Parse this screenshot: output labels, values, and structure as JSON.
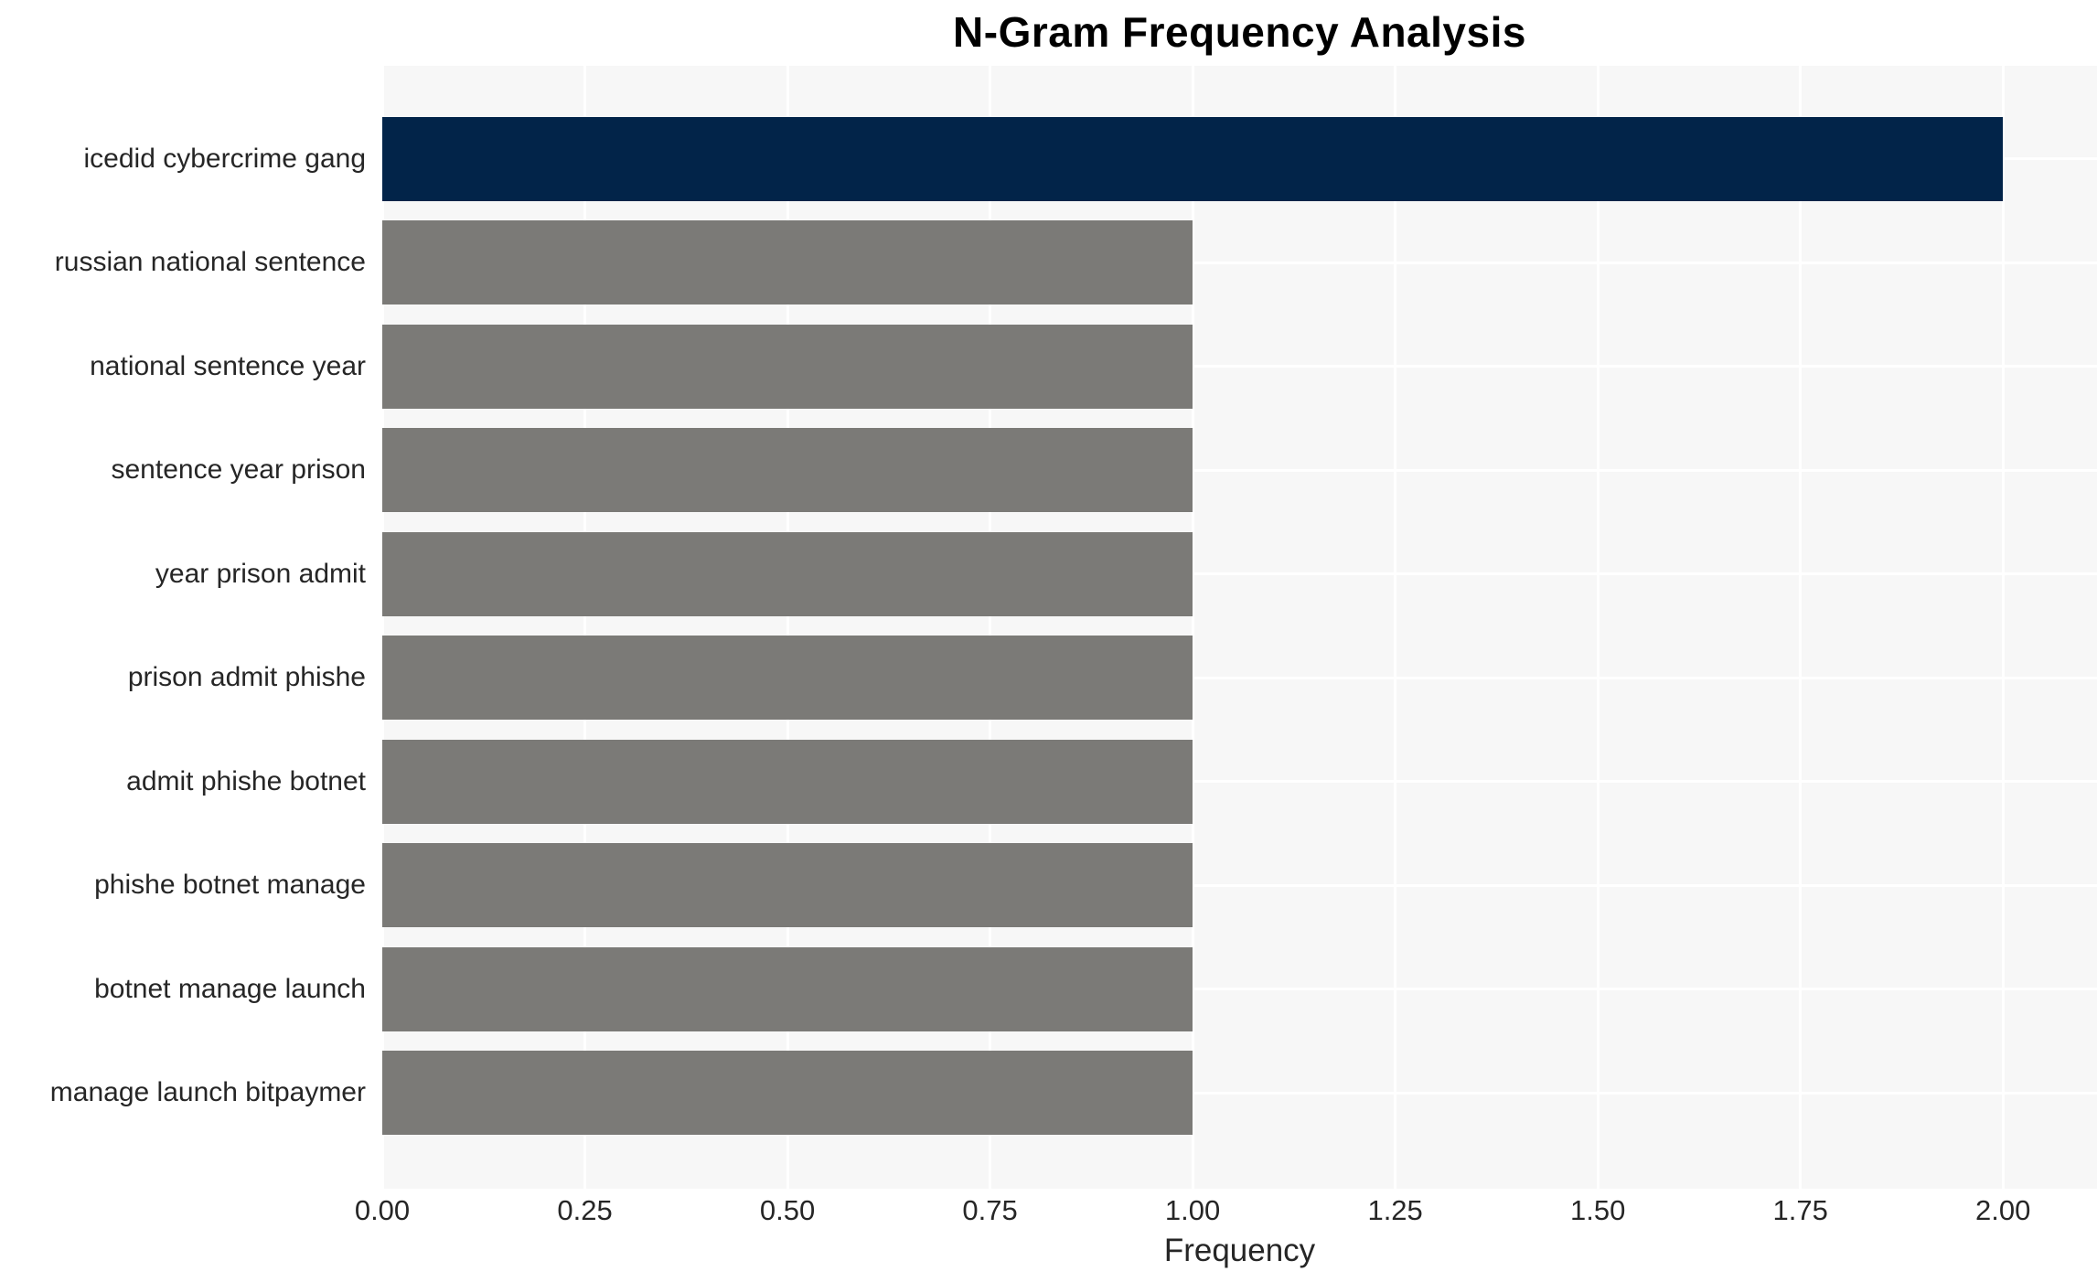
{
  "colors": {
    "title_text": "#000000",
    "tick_text": "#262626",
    "plot_bg": "#f7f7f7",
    "grid": "#ffffff",
    "highlight_bar": "#022449",
    "default_bar": "#7b7a77"
  },
  "chart_data": {
    "type": "bar",
    "orientation": "horizontal",
    "title": "N-Gram Frequency Analysis",
    "xlabel": "Frequency",
    "ylabel": "",
    "categories": [
      "icedid cybercrime gang",
      "russian national sentence",
      "national sentence year",
      "sentence year prison",
      "year prison admit",
      "prison admit phishe",
      "admit phishe botnet",
      "phishe botnet manage",
      "botnet manage launch",
      "manage launch bitpaymer"
    ],
    "values": [
      2.0,
      1.0,
      1.0,
      1.0,
      1.0,
      1.0,
      1.0,
      1.0,
      1.0,
      1.0
    ],
    "bar_colors": [
      "#022449",
      "#7b7a77",
      "#7b7a77",
      "#7b7a77",
      "#7b7a77",
      "#7b7a77",
      "#7b7a77",
      "#7b7a77",
      "#7b7a77",
      "#7b7a77"
    ],
    "xlim": [
      0,
      2.116
    ],
    "xticks": [
      "0.00",
      "0.25",
      "0.50",
      "0.75",
      "1.00",
      "1.25",
      "1.50",
      "1.75",
      "2.00"
    ],
    "grid": true,
    "legend": "none"
  }
}
